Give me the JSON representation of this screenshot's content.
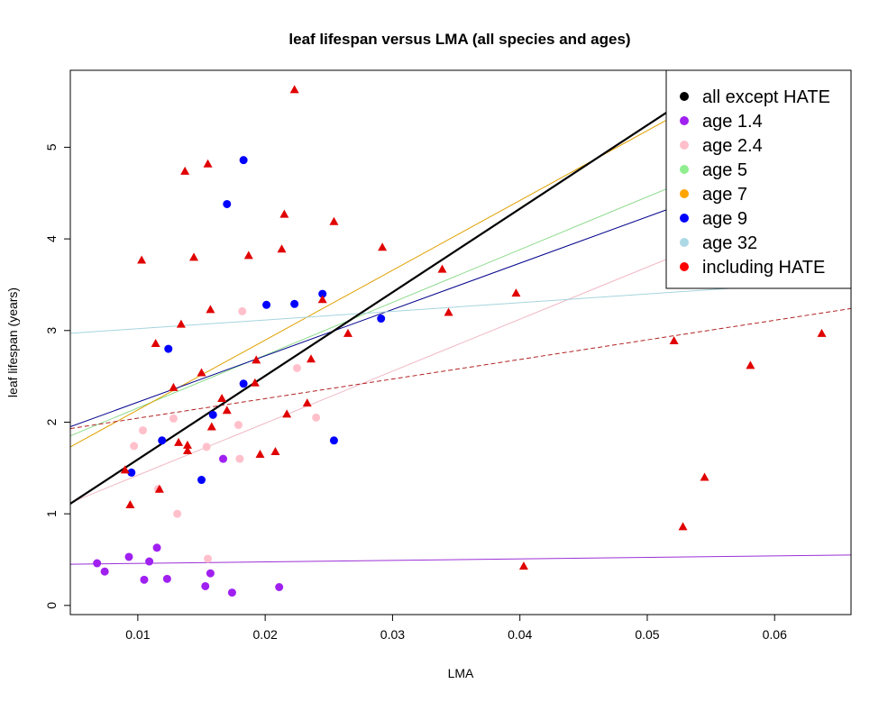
{
  "chart_data": {
    "type": "scatter",
    "title": "leaf lifespan versus LMA (all species and ages)",
    "xlabel": "LMA",
    "ylabel": "leaf lifespan (years)",
    "xlim": [
      0.0047,
      0.066
    ],
    "ylim": [
      -0.1,
      5.84
    ],
    "x_ticks": [
      0.01,
      0.02,
      0.03,
      0.04,
      0.05,
      0.06
    ],
    "x_tick_labels": [
      "0.01",
      "0.02",
      "0.03",
      "0.04",
      "0.05",
      "0.06"
    ],
    "y_ticks": [
      0,
      1,
      2,
      3,
      4,
      5
    ],
    "y_tick_labels": [
      "0",
      "1",
      "2",
      "3",
      "4",
      "5"
    ],
    "grid": false,
    "legend_position": "top-right",
    "legend": [
      {
        "label": "all except HATE",
        "color": "#000000"
      },
      {
        "label": "age 1.4",
        "color": "#a020f0"
      },
      {
        "label": "age 2.4",
        "color": "#ffc0cb"
      },
      {
        "label": "age 5",
        "color": "#90ee90"
      },
      {
        "label": "age 7",
        "color": "#ffa500"
      },
      {
        "label": "age 9",
        "color": "#0000ff"
      },
      {
        "label": "age 32",
        "color": "#add8e6"
      },
      {
        "label": "including HATE",
        "color": "#ff0000"
      }
    ],
    "series": [
      {
        "name": "age 1.4",
        "marker": "circle",
        "color": "#a020f0",
        "points": [
          [
            0.0068,
            0.46
          ],
          [
            0.0074,
            0.37
          ],
          [
            0.0093,
            0.53
          ],
          [
            0.0105,
            0.28
          ],
          [
            0.0109,
            0.48
          ],
          [
            0.0115,
            0.63
          ],
          [
            0.0123,
            0.29
          ],
          [
            0.0153,
            0.21
          ],
          [
            0.0157,
            0.35
          ],
          [
            0.0167,
            1.6
          ],
          [
            0.0174,
            0.14
          ],
          [
            0.0211,
            0.2
          ]
        ]
      },
      {
        "name": "age 2.4",
        "marker": "circle",
        "color": "#ffc0cb",
        "points": [
          [
            0.0097,
            1.74
          ],
          [
            0.0104,
            1.91
          ],
          [
            0.0116,
            1.27
          ],
          [
            0.0128,
            2.04
          ],
          [
            0.0131,
            1.0
          ],
          [
            0.0154,
            1.73
          ],
          [
            0.0155,
            0.51
          ],
          [
            0.0179,
            1.97
          ],
          [
            0.018,
            1.6
          ],
          [
            0.0182,
            3.21
          ],
          [
            0.0225,
            2.59
          ],
          [
            0.024,
            2.05
          ]
        ]
      },
      {
        "name": "age 9",
        "marker": "circle",
        "color": "#0000ff",
        "points": [
          [
            0.0095,
            1.45
          ],
          [
            0.0119,
            1.8
          ],
          [
            0.0124,
            2.8
          ],
          [
            0.015,
            1.37
          ],
          [
            0.0159,
            2.08
          ],
          [
            0.017,
            4.38
          ],
          [
            0.0183,
            2.42
          ],
          [
            0.0183,
            4.86
          ],
          [
            0.0201,
            3.28
          ],
          [
            0.0223,
            3.29
          ],
          [
            0.0245,
            3.4
          ],
          [
            0.0254,
            1.8
          ],
          [
            0.0291,
            3.13
          ]
        ]
      },
      {
        "name": "including HATE",
        "marker": "triangle",
        "color": "#e00000",
        "points": [
          [
            0.009,
            1.48
          ],
          [
            0.0094,
            1.1
          ],
          [
            0.0103,
            3.77
          ],
          [
            0.0114,
            2.86
          ],
          [
            0.0117,
            1.27
          ],
          [
            0.0128,
            2.38
          ],
          [
            0.0132,
            1.78
          ],
          [
            0.0134,
            3.07
          ],
          [
            0.0137,
            4.74
          ],
          [
            0.0139,
            1.69
          ],
          [
            0.0139,
            1.75
          ],
          [
            0.0144,
            3.8
          ],
          [
            0.015,
            2.54
          ],
          [
            0.0155,
            4.82
          ],
          [
            0.0157,
            3.23
          ],
          [
            0.0158,
            1.95
          ],
          [
            0.0166,
            2.26
          ],
          [
            0.017,
            2.13
          ],
          [
            0.0187,
            3.82
          ],
          [
            0.0192,
            2.43
          ],
          [
            0.0193,
            2.68
          ],
          [
            0.0196,
            1.65
          ],
          [
            0.0208,
            1.68
          ],
          [
            0.0213,
            3.89
          ],
          [
            0.0215,
            4.27
          ],
          [
            0.0217,
            2.09
          ],
          [
            0.0223,
            5.63
          ],
          [
            0.0233,
            2.21
          ],
          [
            0.0236,
            2.69
          ],
          [
            0.0245,
            3.34
          ],
          [
            0.0254,
            4.19
          ],
          [
            0.0265,
            2.97
          ],
          [
            0.0292,
            3.91
          ],
          [
            0.0339,
            3.67
          ],
          [
            0.0344,
            3.2
          ],
          [
            0.0397,
            3.41
          ],
          [
            0.0403,
            0.43
          ],
          [
            0.0521,
            2.89
          ],
          [
            0.0528,
            0.86
          ],
          [
            0.0545,
            1.4
          ],
          [
            0.0581,
            2.62
          ],
          [
            0.0637,
            2.97
          ]
        ]
      }
    ],
    "fit_lines": [
      {
        "name": "age 1.4",
        "color": "#9b30d6",
        "width": 1,
        "dash": false,
        "points": [
          [
            0.0047,
            0.45
          ],
          [
            0.066,
            0.55
          ]
        ]
      },
      {
        "name": "age 2.4",
        "color": "#f0b8c4",
        "width": 1,
        "dash": false,
        "points": [
          [
            0.0047,
            1.12
          ],
          [
            0.066,
            4.6
          ]
        ]
      },
      {
        "name": "age 5",
        "color": "#8edc8e",
        "width": 1,
        "dash": false,
        "points": [
          [
            0.0047,
            1.85
          ],
          [
            0.066,
            5.38
          ]
        ]
      },
      {
        "name": "age 7",
        "color": "#e0a000",
        "width": 1,
        "dash": false,
        "points": [
          [
            0.0047,
            1.73
          ],
          [
            0.066,
            6.4
          ]
        ]
      },
      {
        "name": "age 9",
        "color": "#00008b",
        "width": 1,
        "dash": false,
        "points": [
          [
            0.0047,
            1.95
          ],
          [
            0.066,
            5.05
          ]
        ]
      },
      {
        "name": "age 32",
        "color": "#a6d4de",
        "width": 1,
        "dash": false,
        "points": [
          [
            0.0047,
            2.97
          ],
          [
            0.066,
            3.55
          ]
        ]
      },
      {
        "name": "including HATE",
        "color": "#b22222",
        "width": 1,
        "dash": true,
        "points": [
          [
            0.0047,
            1.93
          ],
          [
            0.066,
            3.24
          ]
        ]
      },
      {
        "name": "all except HATE",
        "color": "#000000",
        "width": 2.2,
        "dash": false,
        "points": [
          [
            0.0047,
            1.11
          ],
          [
            0.066,
            6.7
          ]
        ]
      }
    ]
  }
}
